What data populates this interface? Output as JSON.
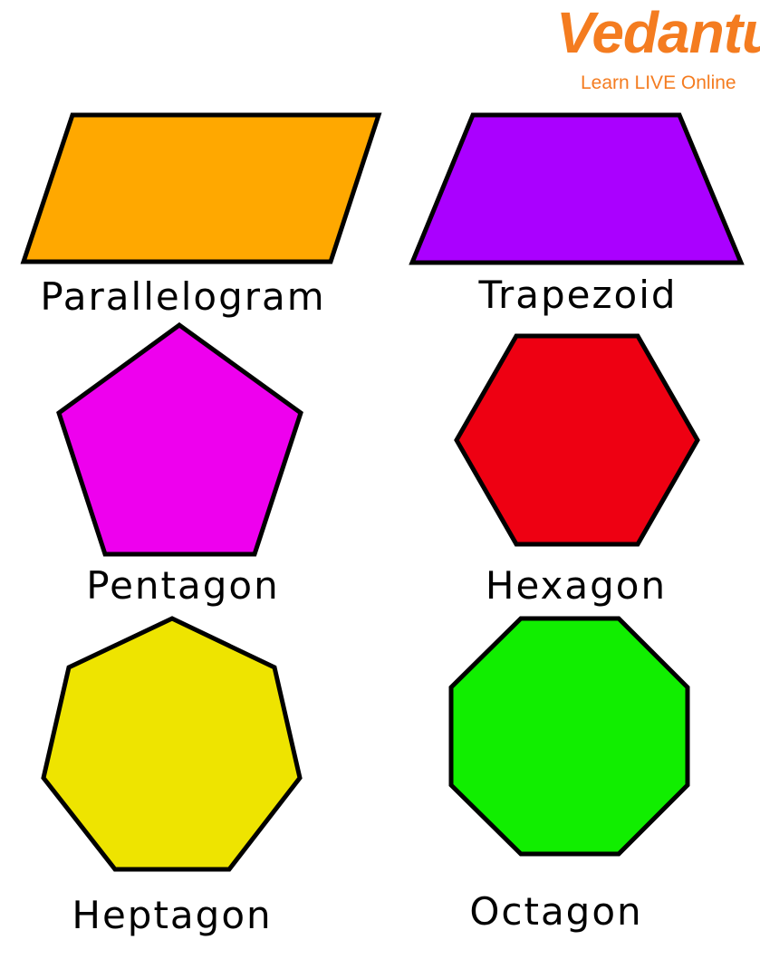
{
  "logo": {
    "brand": "Vedantu",
    "tagline": "Learn LIVE Online",
    "color": "#f47c20"
  },
  "shapes": [
    {
      "id": "parallelogram",
      "label": "Parallelogram",
      "color": "#ffa800",
      "sides": 4
    },
    {
      "id": "trapezoid",
      "label": "Trapezoid",
      "color": "#aa00ff",
      "sides": 4
    },
    {
      "id": "pentagon",
      "label": "Pentagon",
      "color": "#ee00ee",
      "sides": 5
    },
    {
      "id": "hexagon",
      "label": "Hexagon",
      "color": "#ee0012",
      "sides": 6
    },
    {
      "id": "heptagon",
      "label": "Heptagon",
      "color": "#eee400",
      "sides": 7
    },
    {
      "id": "octagon",
      "label": "Octagon",
      "color": "#11ee00",
      "sides": 8
    }
  ]
}
